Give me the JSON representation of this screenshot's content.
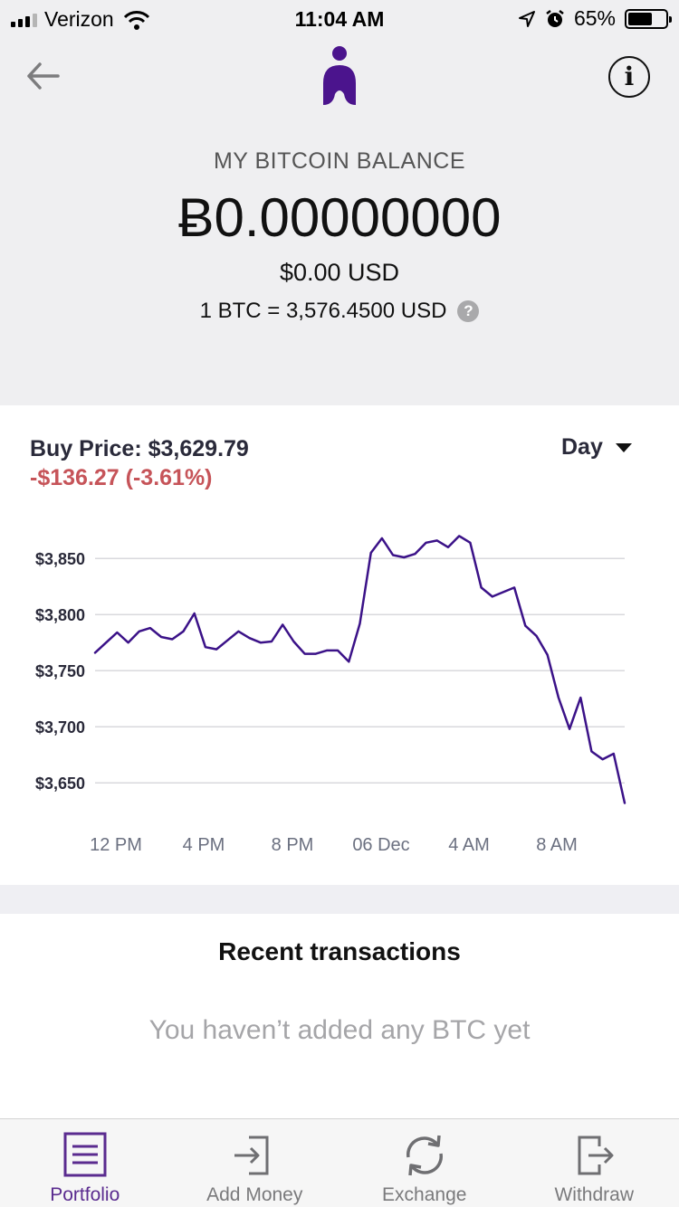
{
  "status_bar": {
    "carrier": "Verizon",
    "time": "11:04 AM",
    "battery": "65%"
  },
  "header": {
    "balance_label": "MY BITCOIN BALANCE",
    "balance": "Ƀ0.00000000",
    "balance_usd": "$0.00 USD",
    "rate": "1 BTC = 3,576.4500 USD",
    "help_glyph": "?",
    "info_glyph": "i"
  },
  "price": {
    "buy_price": "Buy Price: $3,629.79",
    "change": "-$136.27 (-3.61%)",
    "range": "Day"
  },
  "chart_data": {
    "type": "line",
    "x_tick_labels": [
      "12 PM",
      "4 PM",
      "8 PM",
      "06 Dec",
      "4 AM",
      "8 AM"
    ],
    "y_tick_labels": [
      "$3,850",
      "$3,800",
      "$3,750",
      "$3,700",
      "$3,650"
    ],
    "y_ticks": [
      3850,
      3800,
      3750,
      3700,
      3650
    ],
    "ylim": [
      3630,
      3880
    ],
    "color": "#3b1288",
    "grid": true,
    "values": [
      3766,
      3775,
      3784,
      3775,
      3785,
      3788,
      3780,
      3778,
      3785,
      3801,
      3771,
      3769,
      3777,
      3785,
      3779,
      3775,
      3776,
      3791,
      3776,
      3765,
      3765,
      3768,
      3768,
      3758,
      3792,
      3855,
      3868,
      3853,
      3851,
      3854,
      3864,
      3866,
      3860,
      3870,
      3864,
      3824,
      3816,
      3820,
      3824,
      3790,
      3781,
      3764,
      3726,
      3698,
      3726,
      3678,
      3671,
      3676,
      3632
    ]
  },
  "transactions": {
    "title": "Recent transactions",
    "empty_message": "You haven’t added any BTC yet"
  },
  "tabs": [
    {
      "label": "Portfolio",
      "icon": "portfolio-icon",
      "active": true
    },
    {
      "label": "Add Money",
      "icon": "add-money-icon",
      "active": false
    },
    {
      "label": "Exchange",
      "icon": "exchange-icon",
      "active": false
    },
    {
      "label": "Withdraw",
      "icon": "withdraw-icon",
      "active": false
    }
  ],
  "colors": {
    "brand": "#4b148d",
    "negative": "#c65459",
    "grid": "#d9d9dd",
    "tick_text": "#6b7080"
  }
}
